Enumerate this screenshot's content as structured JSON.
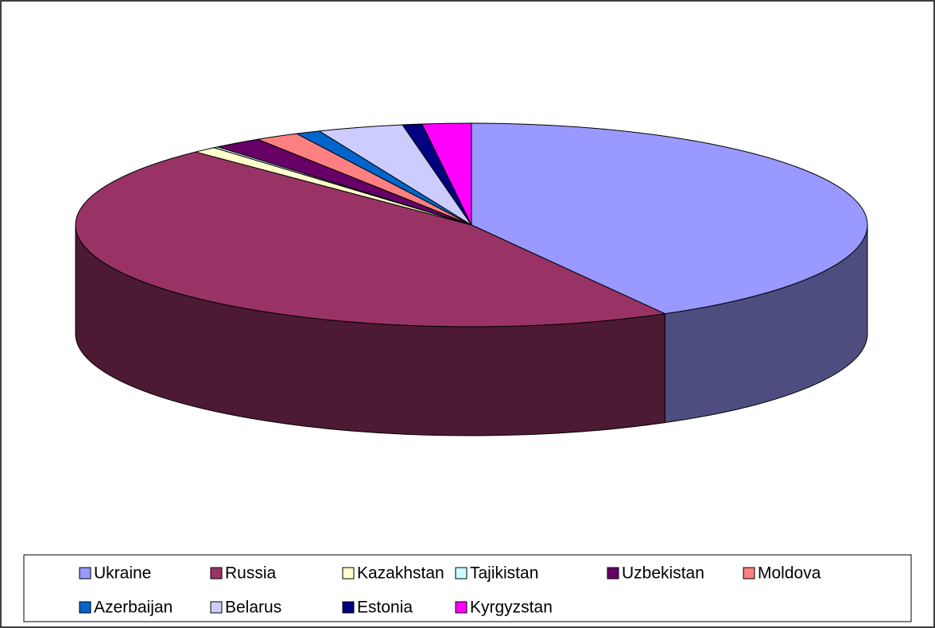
{
  "chart_data": {
    "type": "pie",
    "categories": [
      "Ukraine",
      "Russia",
      "Kazakhstan",
      "Tajikistan",
      "Uzbekistan",
      "Moldova",
      "Azerbaijan",
      "Belarus",
      "Estonia",
      "Kyrgyzstan"
    ],
    "values": [
      42,
      46,
      1,
      0.2,
      2,
      1.8,
      1,
      3.5,
      0.8,
      2
    ],
    "colors": [
      "#9999ff",
      "#993366",
      "#ffffcc",
      "#ccffff",
      "#660066",
      "#ff8080",
      "#0066cc",
      "#ccccff",
      "#000080",
      "#ff00ff"
    ],
    "legend": "bottom"
  }
}
